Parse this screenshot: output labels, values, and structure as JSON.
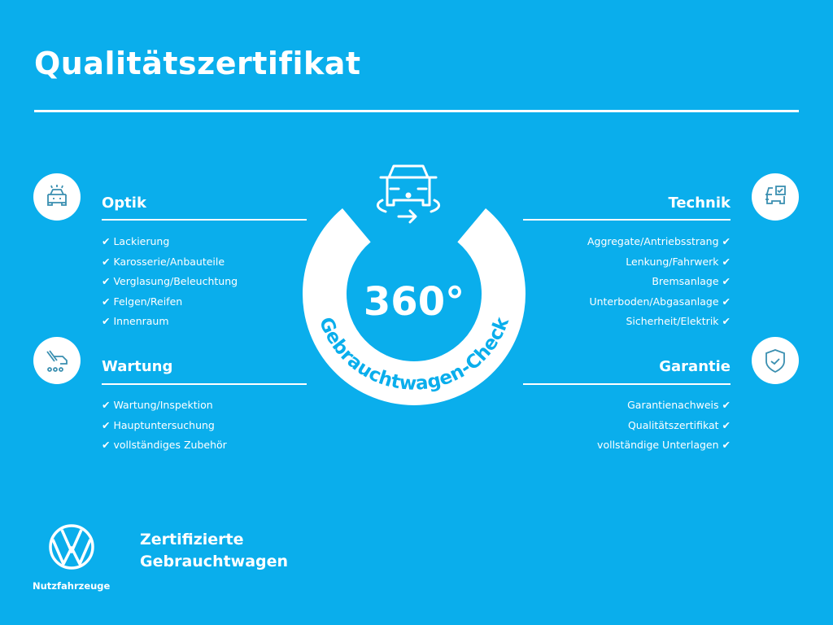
{
  "title": "Qualitätszertifikat",
  "colors": {
    "background": "#0aaeec",
    "foreground": "#ffffff",
    "icon": "#3a8fb0"
  },
  "badge": {
    "number": "360°",
    "arc_text": "Gebrauchtwagen-Check",
    "icon": "car-360-rotate-icon"
  },
  "check_symbol": "✔",
  "sections": {
    "optik": {
      "heading": "Optik",
      "icon": "car-lights-icon",
      "items": [
        "Lackierung",
        "Karosserie/Anbauteile",
        "Verglasung/Beleuchtung",
        "Felgen/Reifen",
        "Innenraum"
      ]
    },
    "wartung": {
      "heading": "Wartung",
      "icon": "service-tools-icon",
      "items": [
        "Wartung/Inspektion",
        "Hauptuntersuchung",
        "vollständiges Zubehör"
      ]
    },
    "technik": {
      "heading": "Technik",
      "icon": "car-checklist-icon",
      "items": [
        "Aggregate/Antriebsstrang",
        "Lenkung/Fahrwerk",
        "Bremsanlage",
        "Unterboden/Abgasanlage",
        "Sicherheit/Elektrik"
      ]
    },
    "garantie": {
      "heading": "Garantie",
      "icon": "shield-check-icon",
      "items": [
        "Garantienachweis",
        "Qualitätszertifikat",
        "vollständige Unterlagen"
      ]
    }
  },
  "footer": {
    "line1": "Zertifizierte",
    "line2": "Gebrauchtwagen",
    "brand": "Nutzfahrzeuge",
    "logo": "vw-logo"
  }
}
